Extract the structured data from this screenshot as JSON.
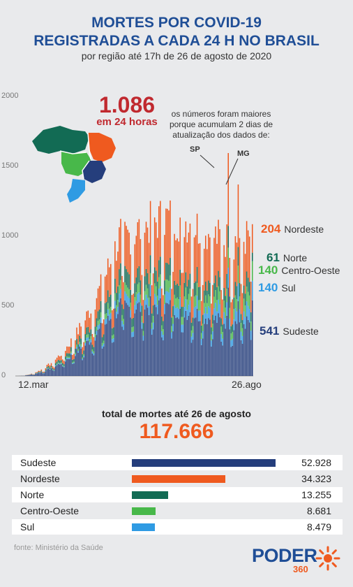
{
  "header": {
    "title_line1": "MORTES POR COVID-19",
    "title_line2": "REGISTRADAS A CADA 24 H NO BRASIL",
    "subtitle": "por região até 17h de 26 de agosto de 2020"
  },
  "highlight": {
    "value": "1.086",
    "label": "em 24 horas"
  },
  "note": {
    "text": "os números foram maiores porque acumulam 2 dias de atualização dos dados de:",
    "sp": "SP",
    "mg": "MG"
  },
  "chart_data": {
    "type": "bar",
    "stacked": true,
    "ylim": [
      0,
      2000
    ],
    "yticks": [
      "2000",
      "1500",
      "1000",
      "500",
      "0"
    ],
    "x_start_label": "12.mar",
    "x_end_label": "26.ago",
    "series_order": [
      "Sudeste",
      "Sul",
      "Centro-Oeste",
      "Norte",
      "Nordeste"
    ],
    "colors": {
      "Sudeste": "#253e7c",
      "Sul": "#2f9be3",
      "Centro-Oeste": "#48b84a",
      "Norte": "#126b54",
      "Nordeste": "#ef5a1f"
    },
    "last_day": [
      {
        "value": "204",
        "name": "Nordeste",
        "color": "#ef5a1f"
      },
      {
        "value": "61",
        "name": "Norte",
        "color": "#126b54"
      },
      {
        "value": "140",
        "name": "Centro-Oeste",
        "color": "#48b84a"
      },
      {
        "value": "140",
        "name": "Sul",
        "color": "#2f9be3"
      },
      {
        "value": "541",
        "name": "Sudeste",
        "color": "#253e7c"
      }
    ],
    "totals_chart": {
      "type": "bar",
      "categories": [
        "Sudeste",
        "Nordeste",
        "Norte",
        "Centro-Oeste",
        "Sul"
      ],
      "values": [
        52928,
        34323,
        13255,
        8681,
        8479
      ],
      "labels": [
        "52.928",
        "34.323",
        "13.255",
        "8.681",
        "8.479"
      ]
    }
  },
  "totals": {
    "label": "total de mortes até 26 de agosto",
    "value": "117.666"
  },
  "footer": {
    "source": "fonte: Ministério da Saúde",
    "logo": "PODER",
    "logo_sub": "360"
  }
}
